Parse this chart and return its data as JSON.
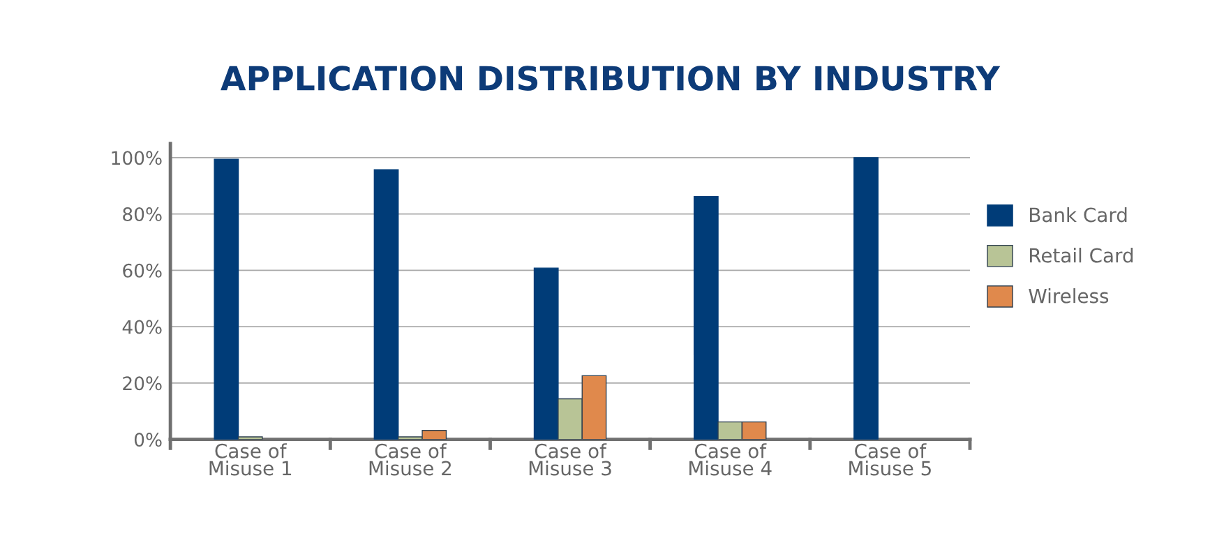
{
  "chart_data": {
    "type": "bar",
    "title": "APPLICATION DISTRIBUTION BY INDUSTRY",
    "categories": [
      "Case of\nMisuse 1",
      "Case of\nMisuse 2",
      "Case of\nMisuse 3",
      "Case of\nMisuse 4",
      "Case of\nMisuse 5"
    ],
    "series": [
      {
        "name": "Bank Card",
        "color": "#003c78",
        "values": [
          99.4,
          95.7,
          60.8,
          86.2,
          100
        ]
      },
      {
        "name": "Retail Card",
        "color": "#b8c496",
        "values": [
          0.9,
          0.9,
          14.4,
          6.2,
          0
        ]
      },
      {
        "name": "Wireless",
        "color": "#e0894c",
        "values": [
          0,
          3.2,
          22.6,
          6.2,
          0
        ]
      }
    ],
    "ylim": [
      0,
      105
    ],
    "yticks": [
      {
        "value": 0,
        "label": "0%"
      },
      {
        "value": 20,
        "label": "20%"
      },
      {
        "value": 40,
        "label": "40%"
      },
      {
        "value": 60,
        "label": "60%"
      },
      {
        "value": 80,
        "label": "80%"
      },
      {
        "value": 100,
        "label": "100%"
      }
    ],
    "grid": "y",
    "legend": "right"
  }
}
